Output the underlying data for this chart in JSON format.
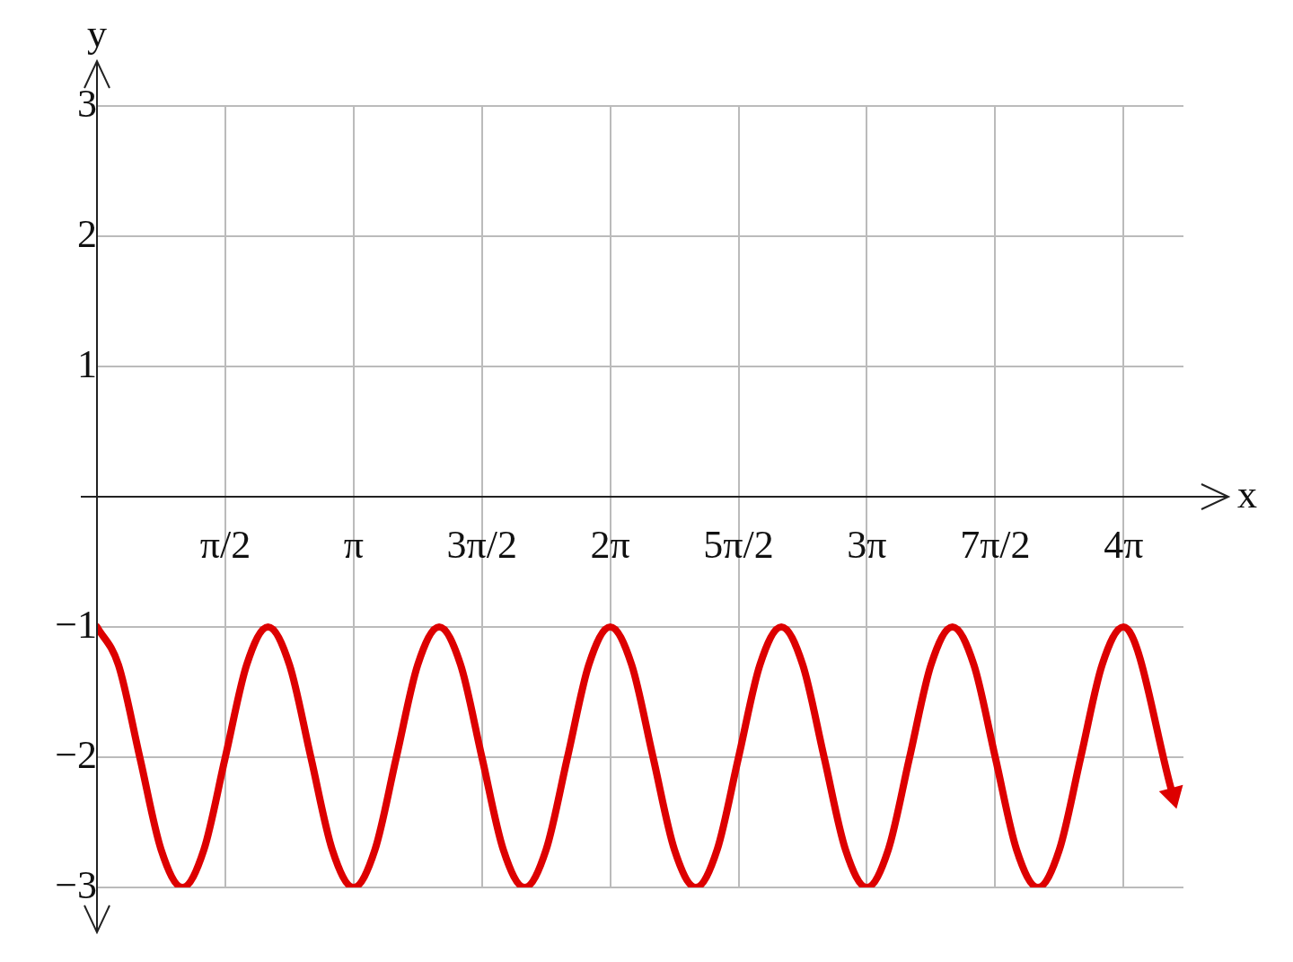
{
  "chart_data": {
    "type": "line",
    "xlabel": "x",
    "ylabel": "y",
    "x": [
      0,
      0.262,
      0.524,
      0.785,
      1.047,
      1.309,
      1.571,
      1.833,
      2.094,
      2.356,
      2.618,
      2.88,
      3.142,
      3.403,
      3.665,
      3.927,
      4.189,
      4.451,
      4.712,
      4.974,
      5.236,
      5.498,
      5.76,
      6.021,
      6.283,
      6.545,
      6.807,
      7.069,
      7.33,
      7.592,
      7.854,
      8.116,
      8.378,
      8.639,
      8.901,
      9.163,
      9.425,
      9.687,
      9.948,
      10.21,
      10.472,
      10.734,
      10.996,
      11.257,
      11.519,
      11.781,
      12.043,
      12.305,
      12.566,
      13.17
    ],
    "series": [
      {
        "color": "#dd0000",
        "values": [
          -1,
          -1.29,
          -2,
          -2.71,
          -3,
          -2.71,
          -2,
          -1.29,
          -1,
          -1.29,
          -2,
          -2.71,
          -3,
          -2.71,
          -2,
          -1.29,
          -1,
          -1.29,
          -2,
          -2.71,
          -3,
          -2.71,
          -2,
          -1.29,
          -1,
          -1.29,
          -2,
          -2.71,
          -3,
          -2.71,
          -2,
          -1.29,
          -1,
          -1.29,
          -2,
          -2.71,
          -3,
          -2.71,
          -2,
          -1.29,
          -1,
          -1.29,
          -2,
          -2.71,
          -3,
          -2.71,
          -2,
          -1.29,
          -1,
          -2.29
        ]
      }
    ],
    "xlim": [
      0,
      13.3
    ],
    "xticks": [
      {
        "value": 1.5708,
        "label": "π/2"
      },
      {
        "value": 3.1416,
        "label": "π"
      },
      {
        "value": 4.7124,
        "label": "3π/2"
      },
      {
        "value": 6.2832,
        "label": "2π"
      },
      {
        "value": 7.854,
        "label": "5π/2"
      },
      {
        "value": 9.4248,
        "label": "3π"
      },
      {
        "value": 10.9956,
        "label": "7π/2"
      },
      {
        "value": 12.5664,
        "label": "4π"
      }
    ],
    "ylim": [
      -3,
      3
    ],
    "yticks": [
      {
        "value": -3,
        "label": "−3"
      },
      {
        "value": -2,
        "label": "−2"
      },
      {
        "value": -1,
        "label": "−1"
      },
      {
        "value": 1,
        "label": "1"
      },
      {
        "value": 2,
        "label": "2"
      },
      {
        "value": 3,
        "label": "3"
      }
    ],
    "grid": true,
    "legend": false,
    "marker": "none",
    "line_style": "solid"
  }
}
